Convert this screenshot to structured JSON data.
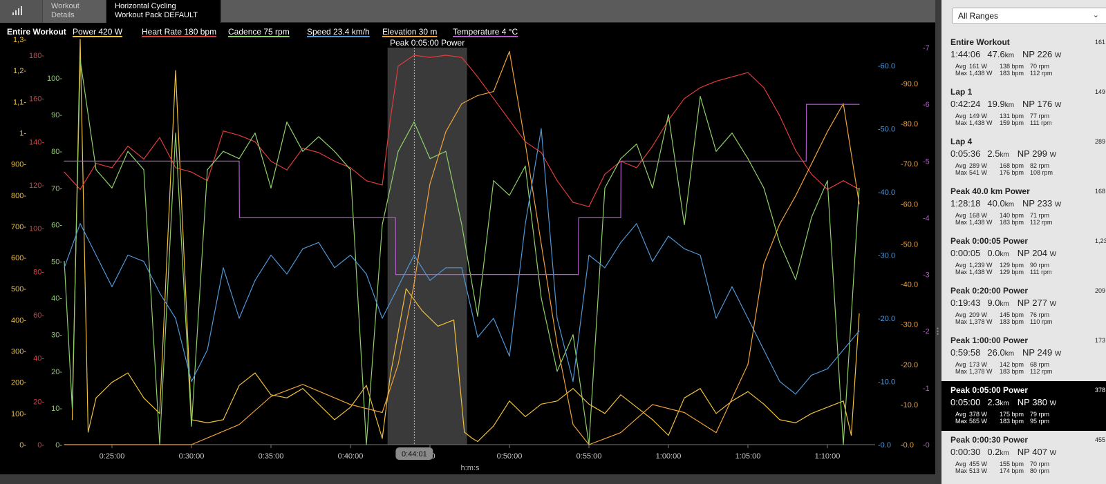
{
  "tabs": [
    {
      "label": "Workout\nDetails"
    },
    {
      "label": "Horizontal Cycling\nWorkout Pack DEFAULT"
    }
  ],
  "legend": [
    {
      "label": "Entire Workout",
      "color": "#ffffff"
    },
    {
      "label": "Power  420 W",
      "color": "#f0c13c"
    },
    {
      "label": "Heart Rate  180 bpm",
      "color": "#e03c3c"
    },
    {
      "label": "Cadence  75 rpm",
      "color": "#8fcf6a"
    },
    {
      "label": "Speed  23.4 km/h",
      "color": "#4f97d6"
    },
    {
      "label": "Elevation  30 m",
      "color": "#f0a23a"
    },
    {
      "label": "Temperature  4 °C",
      "color": "#b05cc8"
    }
  ],
  "highlight": {
    "label": "Peak 0:05:00 Power",
    "start": "0:42:20",
    "end": "0:47:20",
    "cursor_label": "0:44:01"
  },
  "x_axis_label": "h:m:s",
  "sidebar": {
    "range_select": "All Ranges",
    "ranges": [
      {
        "title": "Entire Workout",
        "avg_w": "161 W",
        "time": "1:44:06",
        "dist": "47.6",
        "np": "226",
        "avg": [
          "161 W",
          "138 bpm",
          "70 rpm"
        ],
        "max": [
          "1,438 W",
          "183 bpm",
          "112 rpm"
        ],
        "selected": false
      },
      {
        "title": "Lap 1",
        "avg_w": "149 W",
        "time": "0:42:24",
        "dist": "19.9",
        "np": "176",
        "avg": [
          "149 W",
          "131 bpm",
          "77 rpm"
        ],
        "max": [
          "1,438 W",
          "159 bpm",
          "111 rpm"
        ],
        "selected": false
      },
      {
        "title": "Lap 4",
        "avg_w": "289 W",
        "time": "0:05:36",
        "dist": "2.5",
        "np": "299",
        "avg": [
          "289 W",
          "168 bpm",
          "82 rpm"
        ],
        "max": [
          "541 W",
          "176 bpm",
          "108 rpm"
        ],
        "selected": false
      },
      {
        "title": "Peak 40.0 km Power",
        "avg_w": "168 W",
        "time": "1:28:18",
        "dist": "40.0",
        "np": "233",
        "avg": [
          "168 W",
          "140 bpm",
          "71 rpm"
        ],
        "max": [
          "1,438 W",
          "183 bpm",
          "112 rpm"
        ],
        "selected": false
      },
      {
        "title": "Peak 0:00:05 Power",
        "avg_w": "1,239 W",
        "time": "0:00:05",
        "dist": "0.0",
        "np": "204",
        "avg": [
          "1,239 W",
          "129 bpm",
          "90 rpm"
        ],
        "max": [
          "1,438 W",
          "129 bpm",
          "111 rpm"
        ],
        "selected": false
      },
      {
        "title": "Peak 0:20:00 Power",
        "avg_w": "209 W",
        "time": "0:19:43",
        "dist": "9.0",
        "np": "277",
        "avg": [
          "209 W",
          "145 bpm",
          "76 rpm"
        ],
        "max": [
          "1,378 W",
          "183 bpm",
          "110 rpm"
        ],
        "selected": false
      },
      {
        "title": "Peak 1:00:00 Power",
        "avg_w": "173 W",
        "time": "0:59:58",
        "dist": "26.0",
        "np": "249",
        "avg": [
          "173 W",
          "142 bpm",
          "68 rpm"
        ],
        "max": [
          "1,378 W",
          "183 bpm",
          "112 rpm"
        ],
        "selected": false
      },
      {
        "title": "Peak 0:05:00 Power",
        "avg_w": "378 W",
        "time": "0:05:00",
        "dist": "2.3",
        "np": "380",
        "avg": [
          "378 W",
          "175 bpm",
          "79 rpm"
        ],
        "max": [
          "565 W",
          "183 bpm",
          "95 rpm"
        ],
        "selected": true
      },
      {
        "title": "Peak 0:00:30 Power",
        "avg_w": "455 W",
        "time": "0:00:30",
        "dist": "0.2",
        "np": "407",
        "avg": [
          "455 W",
          "155 bpm",
          "70 rpm"
        ],
        "max": [
          "513 W",
          "174 bpm",
          "80 rpm"
        ],
        "selected": false
      }
    ],
    "labels": {
      "avg": "Avg",
      "max": "Max",
      "km": "km",
      "np": "NP",
      "w": "W"
    }
  },
  "chart_data": {
    "type": "line",
    "xlabel": "h:m:s",
    "x_range": [
      "0:22:00",
      "1:13:00"
    ],
    "x_ticks": [
      "0:25:00",
      "0:30:00",
      "0:35:00",
      "0:40:00",
      "0:45:00",
      "0:50:00",
      "0:55:00",
      "1:00:00",
      "1:05:00",
      "1:10:00"
    ],
    "x_ticks_display": [
      "0:25:00",
      "0:30:00",
      "0:35:00",
      "0:40:00",
      ":00",
      "0:50:00",
      "0:55:00",
      "1:00:00",
      "1:05:00",
      "1:10:00"
    ],
    "axes": [
      {
        "name": "power_w",
        "color": "#f0c13c",
        "ticks": [
          "0-",
          "100-",
          "200-",
          "300-",
          "400-",
          "500-",
          "600-",
          "700-",
          "800-",
          "900-",
          "1-",
          "1,1-",
          "1,2-",
          "1,3-"
        ]
      },
      {
        "name": "heart_rate_bpm",
        "color": "#e03c3c",
        "ticks": [
          "0-",
          "20-",
          "40-",
          "60-",
          "80-",
          "100-",
          "120-",
          "140-",
          "160-",
          "180-"
        ]
      },
      {
        "name": "cadence_rpm",
        "color": "#8fcf6a",
        "ticks": [
          "0-",
          "10-",
          "20-",
          "30-",
          "40-",
          "50-",
          "60-",
          "70-",
          "80-",
          "90-",
          "100-"
        ]
      },
      {
        "name": "speed_kmh",
        "color": "#4f97d6",
        "ticks": [
          "-0.0",
          "-10.0",
          "-20.0",
          "-30.0",
          "-40.0",
          "-50.0",
          "-60.0"
        ]
      },
      {
        "name": "elevation_m",
        "color": "#f0a23a",
        "ticks": [
          "-0.0",
          "-10.0",
          "-20.0",
          "-30.0",
          "-40.0",
          "-50.0",
          "-60.0",
          "-70.0",
          "-80.0",
          "-90.0"
        ]
      },
      {
        "name": "temperature_c",
        "color": "#b05cc8",
        "ticks": [
          "-0",
          "-1",
          "-2",
          "-3",
          "-4",
          "-5",
          "-6",
          "-7"
        ]
      }
    ],
    "series": [
      {
        "name": "Power",
        "color": "#f0c13c",
        "x": [
          "0:22:30",
          "0:23:00",
          "0:23:30",
          "0:24:00",
          "0:25:00",
          "0:26:00",
          "0:27:00",
          "0:28:00",
          "0:29:00",
          "0:30:00",
          "0:31:00",
          "0:32:00",
          "0:33:00",
          "0:34:00",
          "0:35:00",
          "0:36:00",
          "0:37:00",
          "0:38:00",
          "0:39:00",
          "0:40:00",
          "0:41:00",
          "0:42:00",
          "0:42:30",
          "0:43:30",
          "0:44:30",
          "0:45:30",
          "0:46:30",
          "0:47:10",
          "0:47:40",
          "0:48:00",
          "0:49:00",
          "0:50:00",
          "0:51:00",
          "0:52:00",
          "0:53:00",
          "0:54:00",
          "0:55:00",
          "0:56:00",
          "0:57:00",
          "0:58:00",
          "0:59:00",
          "1:00:00",
          "1:01:00",
          "1:02:00",
          "1:03:00",
          "1:04:00",
          "1:05:00",
          "1:06:00",
          "1:07:00",
          "1:08:00",
          "1:09:00",
          "1:10:00",
          "1:11:00",
          "1:11:30",
          "1:12:00"
        ],
        "y": [
          80,
          1300,
          40,
          150,
          200,
          230,
          150,
          100,
          1200,
          80,
          70,
          80,
          190,
          230,
          160,
          150,
          180,
          130,
          80,
          120,
          190,
          20,
          220,
          500,
          430,
          380,
          400,
          40,
          20,
          10,
          60,
          140,
          90,
          130,
          140,
          180,
          130,
          100,
          160,
          120,
          80,
          30,
          150,
          180,
          100,
          140,
          170,
          130,
          80,
          70,
          100,
          120,
          140,
          30,
          420
        ]
      },
      {
        "name": "Heart Rate",
        "color": "#e03c3c",
        "x": [
          "0:22:00",
          "0:23:00",
          "0:24:00",
          "0:25:00",
          "0:26:00",
          "0:27:00",
          "0:28:00",
          "0:29:00",
          "0:30:00",
          "0:31:00",
          "0:32:00",
          "0:33:00",
          "0:34:00",
          "0:35:00",
          "0:36:00",
          "0:37:00",
          "0:38:00",
          "0:39:00",
          "0:40:00",
          "0:41:00",
          "0:42:00",
          "0:42:30",
          "0:43:00",
          "0:44:00",
          "0:45:00",
          "0:46:00",
          "0:47:00",
          "0:48:00",
          "0:49:00",
          "0:50:00",
          "0:51:00",
          "0:52:00",
          "0:53:00",
          "0:54:00",
          "0:55:00",
          "0:56:00",
          "0:57:00",
          "0:58:00",
          "0:59:00",
          "1:00:00",
          "1:01:00",
          "1:02:00",
          "1:03:00",
          "1:04:00",
          "1:05:00",
          "1:06:00",
          "1:07:00",
          "1:08:00",
          "1:09:00",
          "1:10:00",
          "1:11:00",
          "1:12:00"
        ],
        "y": [
          126,
          118,
          130,
          128,
          138,
          132,
          142,
          128,
          126,
          122,
          145,
          143,
          140,
          131,
          127,
          137,
          135,
          131,
          128,
          122,
          120,
          150,
          175,
          180,
          179,
          180,
          179,
          170,
          160,
          150,
          140,
          135,
          122,
          112,
          110,
          125,
          131,
          128,
          138,
          150,
          160,
          165,
          168,
          170,
          172,
          165,
          152,
          136,
          125,
          118,
          122,
          118
        ]
      },
      {
        "name": "Cadence",
        "color": "#8fcf6a",
        "x": [
          "0:22:00",
          "0:22:30",
          "0:23:00",
          "0:23:30",
          "0:24:00",
          "0:25:00",
          "0:26:00",
          "0:27:00",
          "0:28:00",
          "0:29:00",
          "0:30:00",
          "0:31:00",
          "0:32:00",
          "0:33:00",
          "0:34:00",
          "0:35:00",
          "0:36:00",
          "0:37:00",
          "0:38:00",
          "0:39:00",
          "0:40:00",
          "0:41:00",
          "0:42:00",
          "0:43:00",
          "0:44:00",
          "0:45:00",
          "0:46:00",
          "0:47:00",
          "0:48:00",
          "0:49:00",
          "0:50:00",
          "0:51:00",
          "0:52:00",
          "0:53:00",
          "0:54:00",
          "0:55:00",
          "0:56:00",
          "0:57:00",
          "0:58:00",
          "0:59:00",
          "1:00:00",
          "1:01:00",
          "1:02:00",
          "1:03:00",
          "1:04:00",
          "1:05:00",
          "1:06:00",
          "1:07:00",
          "1:08:00",
          "1:09:00",
          "1:10:00",
          "1:11:00",
          "1:12:00"
        ],
        "y": [
          50,
          10,
          105,
          90,
          75,
          70,
          80,
          75,
          0,
          85,
          5,
          75,
          80,
          78,
          85,
          70,
          88,
          80,
          84,
          80,
          75,
          0,
          60,
          80,
          88,
          78,
          80,
          60,
          35,
          72,
          68,
          76,
          40,
          20,
          30,
          0,
          70,
          78,
          82,
          70,
          90,
          60,
          95,
          80,
          85,
          78,
          70,
          55,
          45,
          62,
          72,
          0,
          70
        ]
      },
      {
        "name": "Speed",
        "color": "#4f97d6",
        "x": [
          "0:22:00",
          "0:23:00",
          "0:24:00",
          "0:25:00",
          "0:26:00",
          "0:27:00",
          "0:28:00",
          "0:29:00",
          "0:30:00",
          "0:31:00",
          "0:32:00",
          "0:33:00",
          "0:34:00",
          "0:35:00",
          "0:36:00",
          "0:37:00",
          "0:38:00",
          "0:39:00",
          "0:40:00",
          "0:41:00",
          "0:42:00",
          "0:43:00",
          "0:44:00",
          "0:45:00",
          "0:46:00",
          "0:47:00",
          "0:48:00",
          "0:49:00",
          "0:50:00",
          "0:51:00",
          "0:52:00",
          "0:53:00",
          "0:54:00",
          "0:55:00",
          "0:56:00",
          "0:57:00",
          "0:58:00",
          "0:59:00",
          "1:00:00",
          "1:01:00",
          "1:02:00",
          "1:03:00",
          "1:04:00",
          "1:05:00",
          "1:06:00",
          "1:07:00",
          "1:08:00",
          "1:09:00",
          "1:10:00",
          "1:11:00",
          "1:12:00"
        ],
        "y": [
          28,
          35,
          30,
          25,
          30,
          29,
          24,
          20,
          10,
          15,
          28,
          20,
          26,
          30,
          27,
          31,
          32,
          28,
          30,
          27,
          20,
          25,
          30,
          26,
          28,
          28,
          17,
          20,
          14,
          35,
          50,
          20,
          10,
          30,
          28,
          32,
          35,
          29,
          33,
          31,
          30,
          20,
          25,
          20,
          15,
          10,
          8,
          11,
          12,
          15,
          18
        ]
      },
      {
        "name": "Elevation",
        "color": "#f0a23a",
        "x": [
          "0:22:00",
          "0:26:00",
          "0:30:00",
          "0:33:00",
          "0:35:00",
          "0:37:00",
          "0:40:00",
          "0:42:00",
          "0:43:00",
          "0:44:00",
          "0:45:00",
          "0:46:00",
          "0:47:00",
          "0:48:00",
          "0:49:00",
          "0:50:00",
          "0:51:00",
          "0:52:00",
          "0:53:00",
          "0:54:00",
          "0:55:00",
          "0:57:00",
          "0:59:00",
          "1:01:00",
          "1:03:00",
          "1:05:00",
          "1:06:00",
          "1:07:00",
          "1:08:00",
          "1:09:00",
          "1:10:00",
          "1:11:00",
          "1:12:00"
        ],
        "y": [
          0,
          0,
          0,
          5,
          12,
          15,
          10,
          8,
          20,
          40,
          65,
          78,
          85,
          87,
          88,
          98,
          75,
          50,
          25,
          5,
          0,
          3,
          10,
          8,
          3,
          20,
          45,
          55,
          62,
          70,
          78,
          85,
          60
        ]
      },
      {
        "name": "Temperature",
        "color": "#b05cc8",
        "x": [
          "0:22:00",
          "0:33:00",
          "0:33:01",
          "0:42:50",
          "0:42:51",
          "0:54:20",
          "0:54:21",
          "0:57:00",
          "0:57:01",
          "1:08:40",
          "1:08:41",
          "1:12:00"
        ],
        "y": [
          5,
          5,
          4,
          4,
          3,
          3,
          4,
          4,
          5,
          5,
          6,
          6
        ]
      }
    ]
  }
}
